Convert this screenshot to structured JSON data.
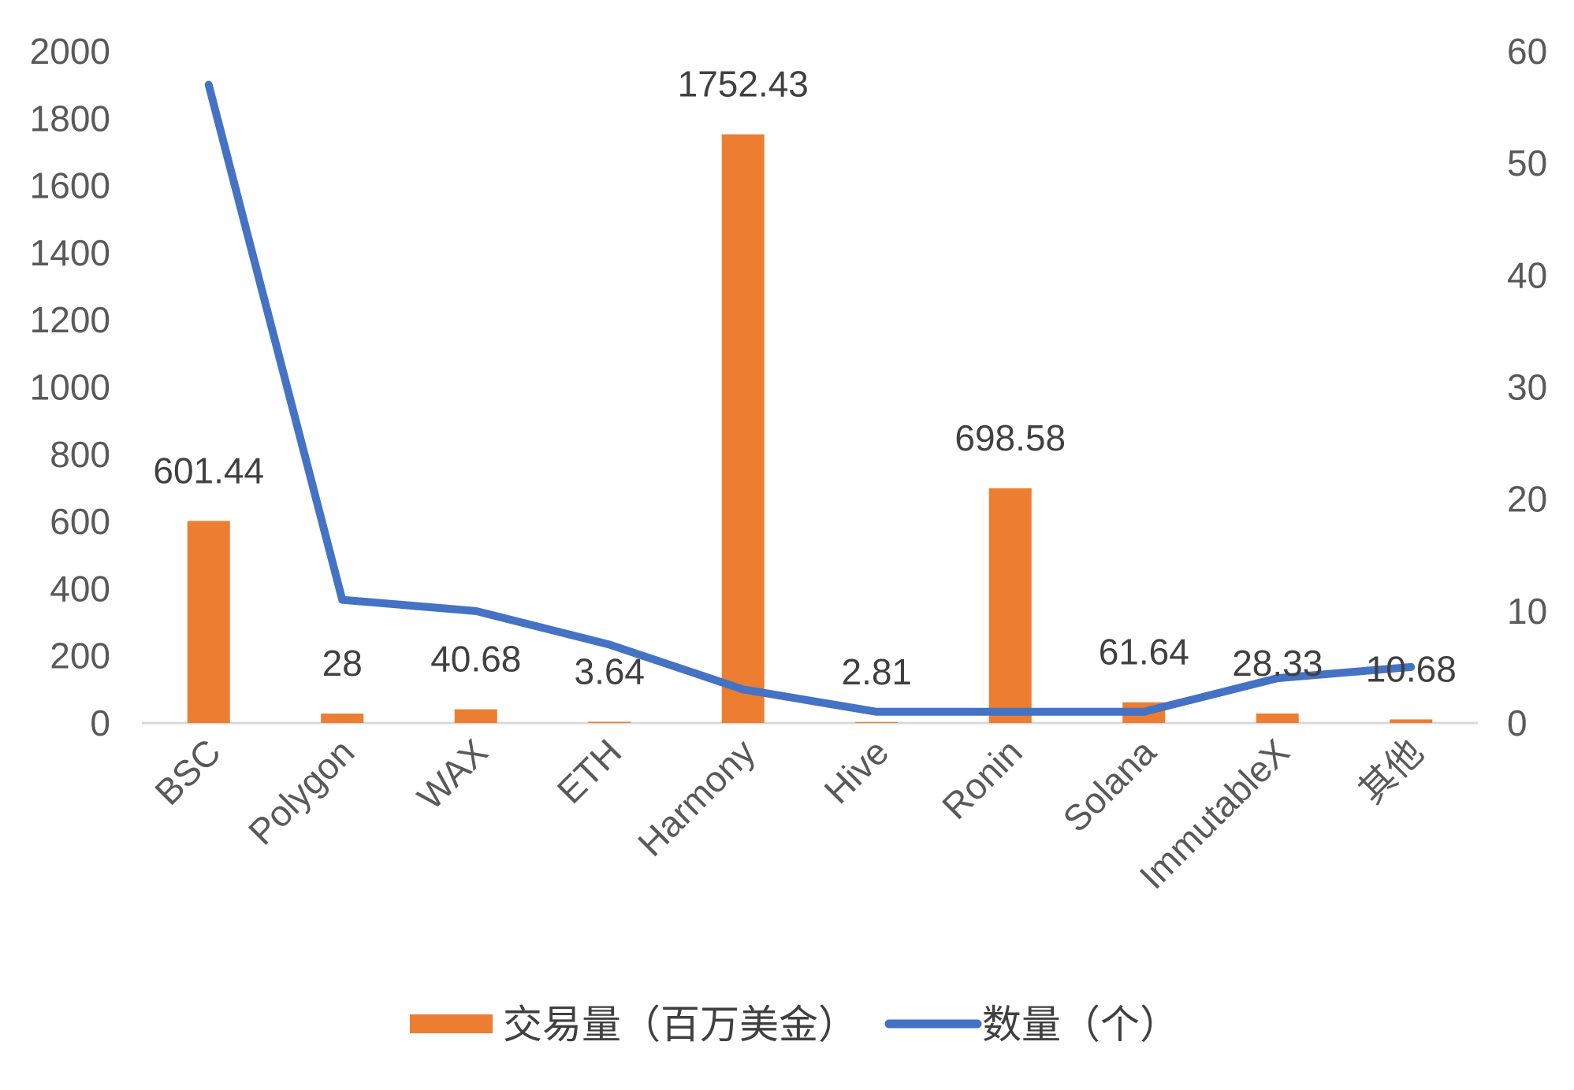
{
  "colors": {
    "bar": "#ED7D31",
    "line": "#4472C4",
    "axis": "#D9D9D9",
    "text": "#595959"
  },
  "chart_data": {
    "type": "bar",
    "categories": [
      "BSC",
      "Polygon",
      "WAX",
      "ETH",
      "Harmony",
      "Hive",
      "Ronin",
      "Solana",
      "ImmutableX",
      "其他"
    ],
    "series": [
      {
        "name": "交易量（百万美金）",
        "type": "bar",
        "axis": "left",
        "values": [
          601.44,
          28,
          40.68,
          3.64,
          1752.43,
          2.81,
          698.58,
          61.64,
          28.33,
          10.68
        ],
        "data_labels": [
          "601.44",
          "28",
          "40.68",
          "3.64",
          "1752.43",
          "2.81",
          "698.58",
          "61.64",
          "28.33",
          "10.68"
        ]
      },
      {
        "name": "数量（个）",
        "type": "line",
        "axis": "right",
        "values": [
          57,
          11,
          10,
          7,
          3,
          1,
          1,
          1,
          4,
          5
        ]
      }
    ],
    "y_left": {
      "lim": [
        0,
        2000
      ],
      "ticks": [
        "0",
        "200",
        "400",
        "600",
        "800",
        "1000",
        "1200",
        "1400",
        "1600",
        "1800",
        "2000"
      ]
    },
    "y_right": {
      "lim": [
        0,
        60
      ],
      "ticks": [
        "0",
        "10",
        "20",
        "30",
        "40",
        "50",
        "60"
      ]
    },
    "title": "",
    "xlabel": "",
    "ylabel": "",
    "grid": false,
    "legend_position": "bottom"
  }
}
